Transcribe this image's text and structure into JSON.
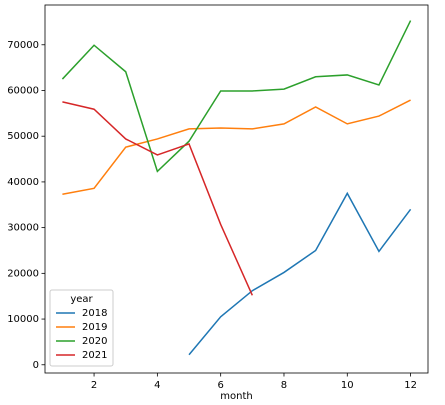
{
  "chart_data": {
    "type": "line",
    "x": [
      1,
      2,
      3,
      4,
      5,
      6,
      7,
      8,
      9,
      10,
      11,
      12
    ],
    "x_label": "month",
    "legend_title": "year",
    "legend_position": "lower left",
    "series": [
      {
        "name": "2018",
        "color": "#1f77b4",
        "values": [
          null,
          null,
          null,
          null,
          2200,
          10500,
          16200,
          20200,
          25000,
          37500,
          24800,
          34000
        ]
      },
      {
        "name": "2019",
        "color": "#ff7f0e",
        "values": [
          37300,
          38600,
          47600,
          49400,
          51600,
          51800,
          51600,
          52700,
          56400,
          52700,
          54400,
          57900
        ]
      },
      {
        "name": "2020",
        "color": "#2ca02c",
        "values": [
          62500,
          69900,
          64100,
          42300,
          48900,
          59900,
          59900,
          60300,
          63000,
          63400,
          61200,
          75300
        ]
      },
      {
        "name": "2021",
        "color": "#d62728",
        "values": [
          57500,
          55900,
          49400,
          45900,
          48300,
          30700,
          15200,
          null,
          null,
          null,
          null,
          null
        ]
      }
    ],
    "xlim": [
      0.45,
      12.55
    ],
    "xticks": [
      2,
      4,
      6,
      8,
      10,
      12
    ],
    "ylim": [
      -1800,
      78700
    ],
    "yticks": [
      0,
      10000,
      20000,
      30000,
      40000,
      50000,
      60000,
      70000
    ],
    "grid": false
  }
}
